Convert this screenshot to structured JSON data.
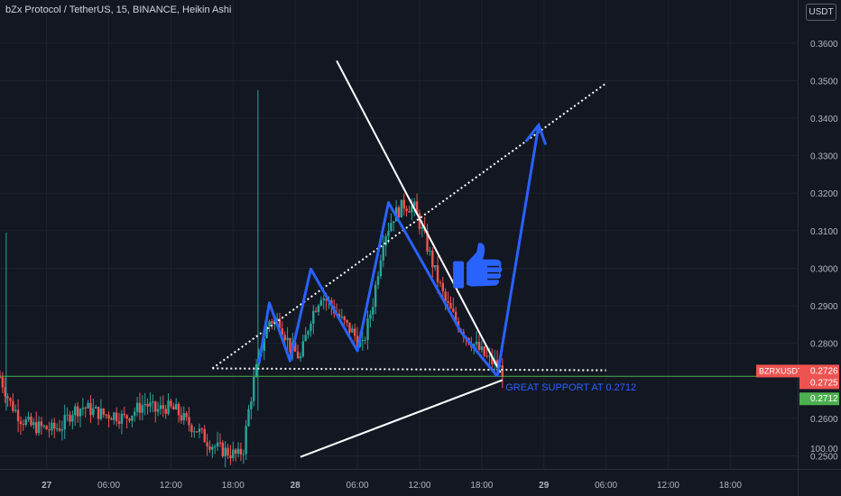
{
  "header": {
    "title": "bZx Protocol / TetherUS, 15, BINANCE, Heikin Ashi",
    "currency": "USDT"
  },
  "colors": {
    "background": "#131722",
    "up": "#26a69a",
    "down": "#ef5350",
    "annotation": "#2962ff",
    "support_line": "#4caf50",
    "trendline": "#ffffff"
  },
  "chart_data": {
    "type": "candlestick",
    "symbol": "BZRXUSDT",
    "y_ticks": [
      "0.3600",
      "0.3500",
      "0.3400",
      "0.3300",
      "0.3200",
      "0.3100",
      "0.3000",
      "0.2900",
      "0.2800",
      "0.2600",
      "0.2500"
    ],
    "y_tick_values": [
      0.36,
      0.35,
      0.34,
      0.33,
      0.32,
      0.31,
      0.3,
      0.29,
      0.28,
      0.26,
      0.25
    ],
    "y_bottom_label": "100.00",
    "x_ticks": [
      "27",
      "06:00",
      "12:00",
      "18:00",
      "28",
      "06:00",
      "12:00",
      "18:00",
      "29",
      "06:00",
      "12:00",
      "18:00"
    ],
    "x_tick_hours": [
      0,
      6,
      12,
      18,
      24,
      30,
      36,
      42,
      48,
      54,
      60,
      66
    ],
    "x_start_hours": -4.5,
    "x_end_hours": 72.5,
    "y_range": [
      0.2465,
      0.3715
    ],
    "price_labels": [
      {
        "text": "BZRXUSDT",
        "value": "0.2726",
        "color": "#ef5350"
      },
      {
        "text": "",
        "value": "0.2725",
        "color": "#ef5350"
      },
      {
        "text": "",
        "value": "0.2712",
        "color": "#4caf50"
      }
    ],
    "support_level": 0.2712,
    "candles_price_path": [
      [
        -4.5,
        0.271
      ],
      [
        -3.5,
        0.264
      ],
      [
        -2.5,
        0.26
      ],
      [
        -1.5,
        0.258
      ],
      [
        0.5,
        0.257
      ],
      [
        1.5,
        0.258
      ],
      [
        2.5,
        0.262
      ],
      [
        3.5,
        0.263
      ],
      [
        4.5,
        0.262
      ],
      [
        5.5,
        0.261
      ],
      [
        6.5,
        0.261
      ],
      [
        7.5,
        0.26
      ],
      [
        8.5,
        0.262
      ],
      [
        9.5,
        0.264
      ],
      [
        10.5,
        0.262
      ],
      [
        11.5,
        0.263
      ],
      [
        12.5,
        0.262
      ],
      [
        13.5,
        0.259
      ],
      [
        14.5,
        0.257
      ],
      [
        15.5,
        0.254
      ],
      [
        16.5,
        0.252
      ],
      [
        17.5,
        0.251
      ],
      [
        18.5,
        0.25
      ],
      [
        19.0,
        0.252
      ],
      [
        19.5,
        0.262
      ],
      [
        20.0,
        0.27
      ],
      [
        20.5,
        0.276
      ],
      [
        21.0,
        0.282
      ],
      [
        21.5,
        0.286
      ],
      [
        22.5,
        0.286
      ],
      [
        23.5,
        0.279
      ],
      [
        24.5,
        0.276
      ],
      [
        25.5,
        0.287
      ],
      [
        26.5,
        0.293
      ],
      [
        27.5,
        0.29
      ],
      [
        28.5,
        0.286
      ],
      [
        29.5,
        0.283
      ],
      [
        30.5,
        0.279
      ],
      [
        31.5,
        0.291
      ],
      [
        32.5,
        0.308
      ],
      [
        33.5,
        0.314
      ],
      [
        34.5,
        0.317
      ],
      [
        35.5,
        0.316
      ],
      [
        36.5,
        0.308
      ],
      [
        37.5,
        0.299
      ],
      [
        38.5,
        0.291
      ],
      [
        39.5,
        0.286
      ],
      [
        40.5,
        0.282
      ],
      [
        41.5,
        0.279
      ],
      [
        42.5,
        0.276
      ],
      [
        43.5,
        0.274
      ],
      [
        44.0,
        0.2726
      ]
    ],
    "annotations": {
      "zigzag": [
        [
          20.5,
          0.2747
        ],
        [
          21.5,
          0.2908
        ],
        [
          23.5,
          0.2753
        ],
        [
          25.5,
          0.2998
        ],
        [
          30.0,
          0.278
        ],
        [
          33.0,
          0.3175
        ],
        [
          37.0,
          0.298
        ],
        [
          40.0,
          0.283
        ],
        [
          43.5,
          0.2712
        ]
      ],
      "target_arrow": [
        [
          43.5,
          0.2712
        ],
        [
          47.5,
          0.3382
        ]
      ],
      "upper_dotted": [
        [
          16.0,
          0.2733
        ],
        [
          54.0,
          0.3493
        ]
      ],
      "lower_dotted": [
        [
          16.0,
          0.2733
        ],
        [
          54.0,
          0.2728
        ]
      ],
      "falling_line": [
        [
          28.0,
          0.3553
        ],
        [
          43.8,
          0.2722
        ]
      ],
      "rising_line": [
        [
          24.5,
          0.2497
        ],
        [
          44.0,
          0.2702
        ]
      ],
      "text": "GREAT SUPPORT AT 0.2712",
      "text_anchor": [
        44.3,
        0.2698
      ],
      "thumbs_up_anchor": [
        41.5,
        0.299
      ]
    }
  }
}
